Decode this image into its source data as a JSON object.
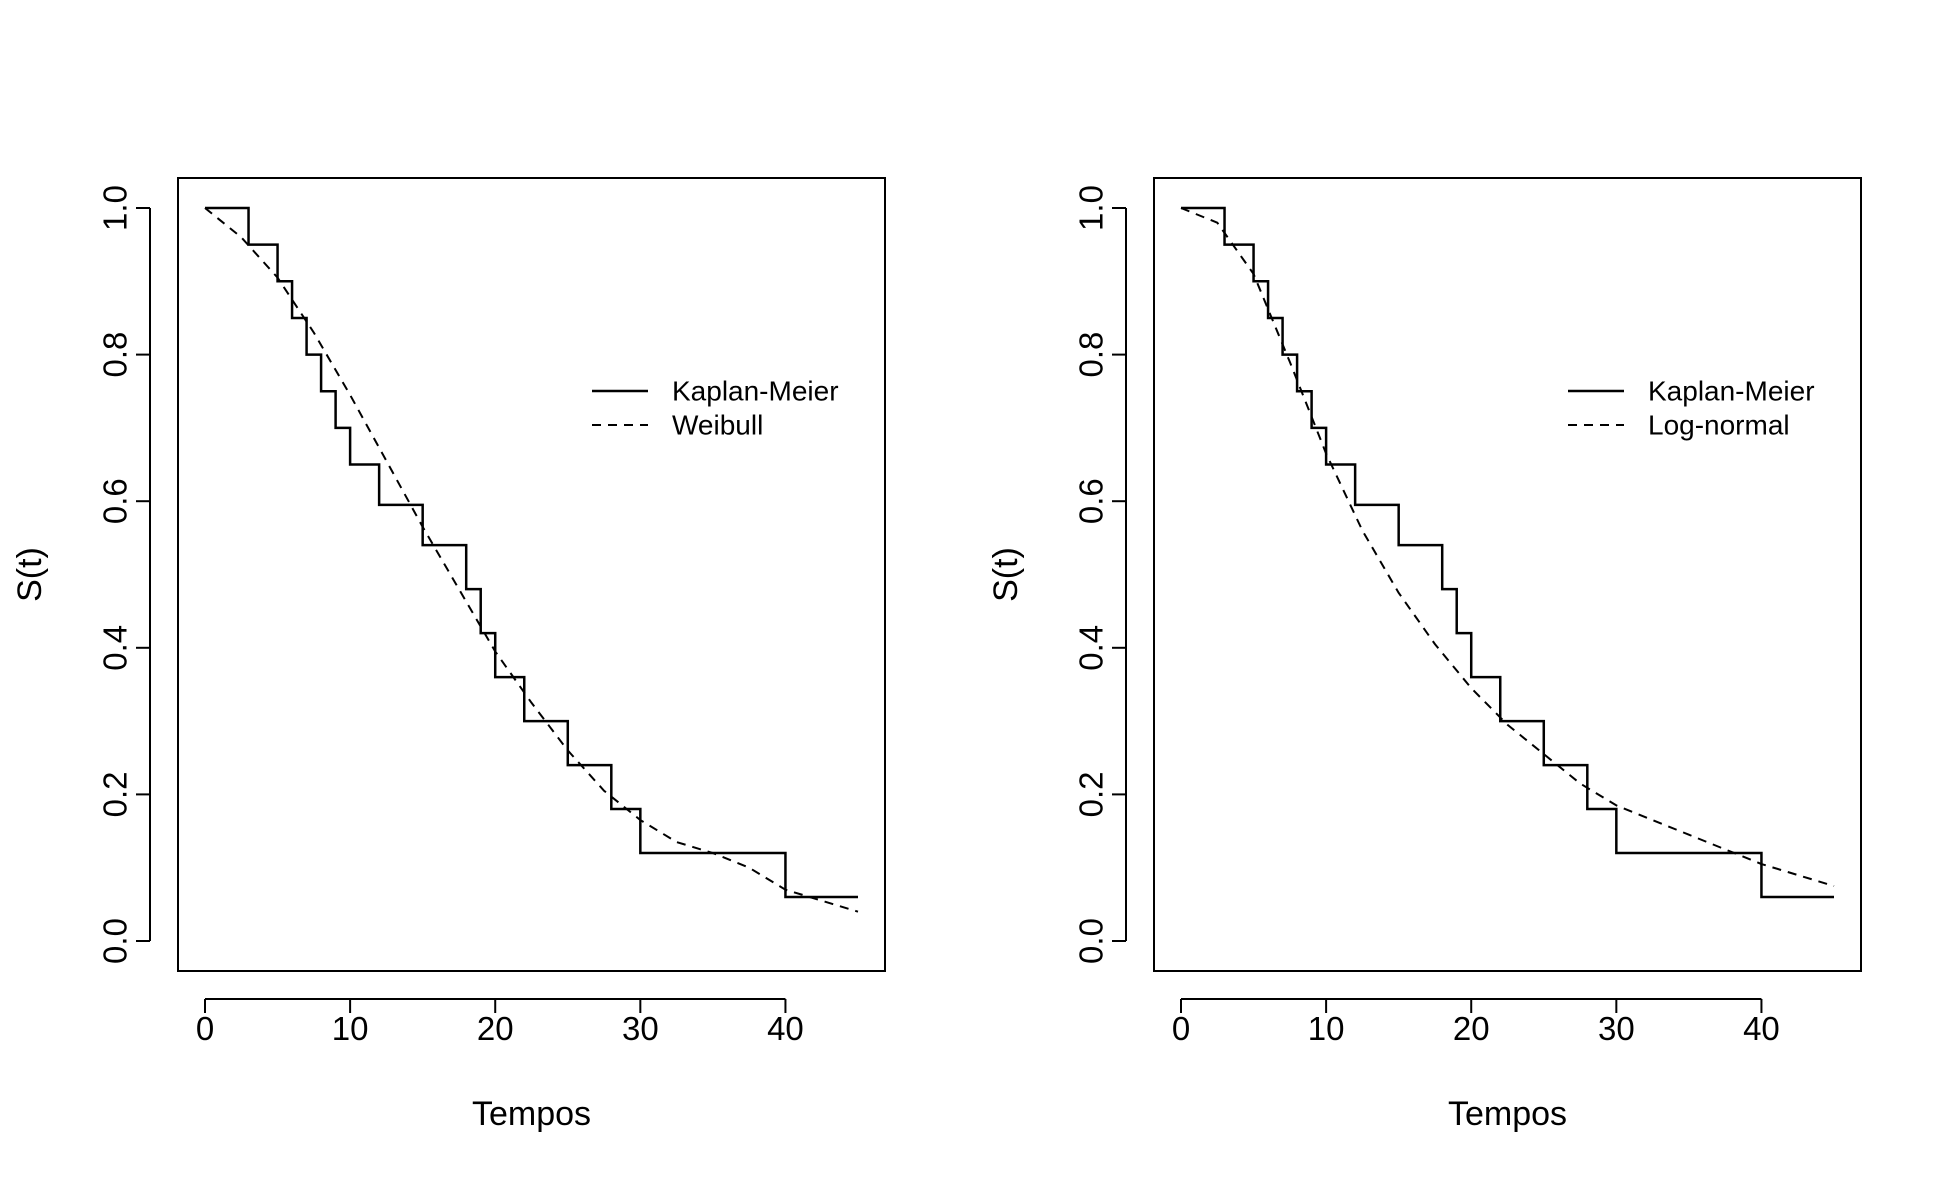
{
  "chart_data": [
    {
      "type": "line",
      "title": "",
      "xlabel": "Tempos",
      "ylabel": "S(t)",
      "xlim": [
        0,
        45
      ],
      "ylim": [
        0,
        1
      ],
      "xticks": [
        "0",
        "10",
        "20",
        "30",
        "40"
      ],
      "yticks": [
        "0.0",
        "0.2",
        "0.4",
        "0.6",
        "0.8",
        "1.0"
      ],
      "grid": false,
      "legend_position": "upper-right",
      "series": [
        {
          "name": "Kaplan-Meier",
          "style": "step-solid",
          "x": [
            0,
            3,
            5,
            6,
            7,
            8,
            9,
            10,
            12,
            15,
            18,
            19,
            20,
            22,
            25,
            28,
            30,
            40,
            45
          ],
          "y": [
            1.0,
            0.95,
            0.9,
            0.85,
            0.8,
            0.75,
            0.7,
            0.65,
            0.595,
            0.54,
            0.48,
            0.42,
            0.36,
            0.3,
            0.24,
            0.18,
            0.12,
            0.06,
            0.06
          ]
        },
        {
          "name": "Weibull",
          "style": "dashed",
          "x": [
            0,
            2.5,
            5,
            7.5,
            10,
            12.5,
            15,
            17.5,
            20,
            22.5,
            25,
            27.5,
            30,
            32.5,
            35,
            37.5,
            40,
            42.5,
            45
          ],
          "y": [
            1.0,
            0.96,
            0.905,
            0.83,
            0.745,
            0.655,
            0.565,
            0.48,
            0.395,
            0.325,
            0.26,
            0.205,
            0.165,
            0.135,
            0.12,
            0.1,
            0.07,
            0.055,
            0.04
          ]
        }
      ]
    },
    {
      "type": "line",
      "title": "",
      "xlabel": "Tempos",
      "ylabel": "S(t)",
      "xlim": [
        0,
        45
      ],
      "ylim": [
        0,
        1
      ],
      "xticks": [
        "0",
        "10",
        "20",
        "30",
        "40"
      ],
      "yticks": [
        "0.0",
        "0.2",
        "0.4",
        "0.6",
        "0.8",
        "1.0"
      ],
      "grid": false,
      "legend_position": "upper-right",
      "series": [
        {
          "name": "Kaplan-Meier",
          "style": "step-solid",
          "x": [
            0,
            3,
            5,
            6,
            7,
            8,
            9,
            10,
            12,
            15,
            18,
            19,
            20,
            22,
            25,
            28,
            30,
            40,
            45
          ],
          "y": [
            1.0,
            0.95,
            0.9,
            0.85,
            0.8,
            0.75,
            0.7,
            0.65,
            0.595,
            0.54,
            0.48,
            0.42,
            0.36,
            0.3,
            0.24,
            0.18,
            0.12,
            0.06,
            0.06
          ]
        },
        {
          "name": "Log-normal",
          "style": "dashed",
          "x": [
            0,
            2.5,
            5,
            7.5,
            10,
            12.5,
            15,
            17.5,
            20,
            22.5,
            25,
            27.5,
            30,
            32.5,
            35,
            37.5,
            40,
            42.5,
            45
          ],
          "y": [
            1.0,
            0.98,
            0.91,
            0.79,
            0.665,
            0.56,
            0.475,
            0.405,
            0.345,
            0.295,
            0.255,
            0.215,
            0.185,
            0.165,
            0.145,
            0.125,
            0.105,
            0.09,
            0.075
          ]
        }
      ]
    }
  ]
}
